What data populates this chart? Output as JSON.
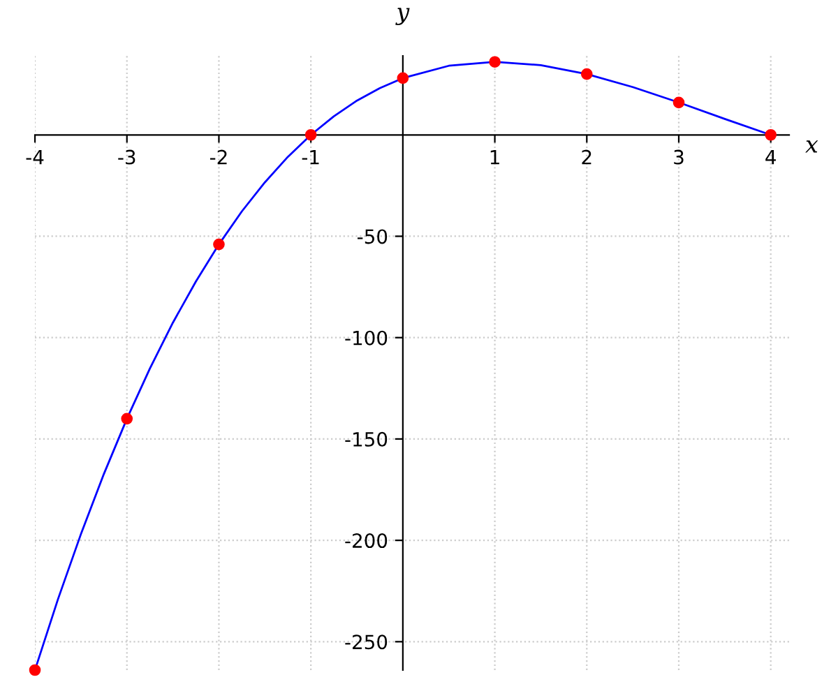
{
  "chart_data": {
    "type": "line",
    "xlabel": "x",
    "ylabel": "y",
    "series": [
      {
        "color": "#0000ff",
        "marker": "none",
        "x": [
          -4,
          -3.75,
          -3.5,
          -3.25,
          -3,
          -2.75,
          -2.5,
          -2.25,
          -2,
          -1.75,
          -1.5,
          -1.25,
          -1,
          -0.75,
          -0.5,
          -0.25,
          0,
          0.5,
          1,
          1.5,
          2,
          2.5,
          3,
          3.5,
          4
        ],
        "values": [
          -264,
          -229.1,
          -196.9,
          -167.2,
          -140,
          -115.2,
          -92.6,
          -72.3,
          -54,
          -37.7,
          -23.4,
          -10.8,
          0,
          9.2,
          16.9,
          23.1,
          28,
          34.1,
          36,
          34.4,
          30,
          23.6,
          16,
          7.9,
          0
        ]
      },
      {
        "type": "scatter",
        "color": "#ff0000",
        "marker": "circle",
        "x": [
          -4,
          -3,
          -2,
          -1,
          0,
          1,
          2,
          3,
          4
        ],
        "values": [
          -264,
          -140,
          -54,
          0,
          28,
          36,
          30,
          16,
          0
        ]
      }
    ],
    "xlim": [
      -4,
      4.2
    ],
    "ylim": [
      -264,
      39
    ],
    "xticks": [
      -4,
      -3,
      -2,
      -1,
      1,
      2,
      3,
      4
    ],
    "yticks": [
      -250,
      -200,
      -150,
      -100,
      -50
    ],
    "grid": true
  }
}
